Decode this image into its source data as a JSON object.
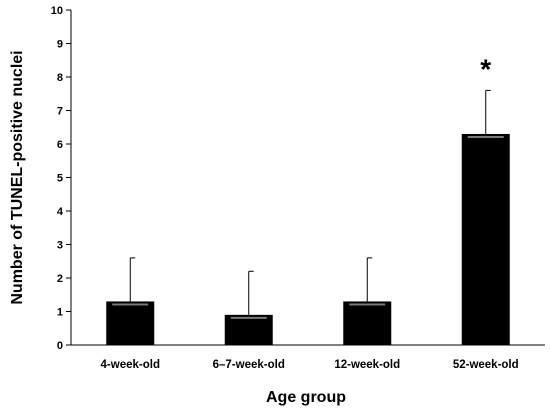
{
  "chart_data": {
    "type": "bar",
    "title": "",
    "xlabel": "Age group",
    "ylabel": "Number of TUNEL-positive nuclei",
    "ylim": [
      0,
      10
    ],
    "yticks": [
      0,
      1,
      2,
      3,
      4,
      5,
      6,
      7,
      8,
      9,
      10
    ],
    "grid": false,
    "categories": [
      "4-week-old",
      "6–7-week-old",
      "12-week-old",
      "52-week-old"
    ],
    "values": [
      1.3,
      0.9,
      1.3,
      6.3
    ],
    "error_upper": [
      1.3,
      1.3,
      1.3,
      1.3
    ],
    "bar_color": "#000000",
    "annotations": [
      {
        "category": "52-week-old",
        "text": "*"
      }
    ]
  }
}
